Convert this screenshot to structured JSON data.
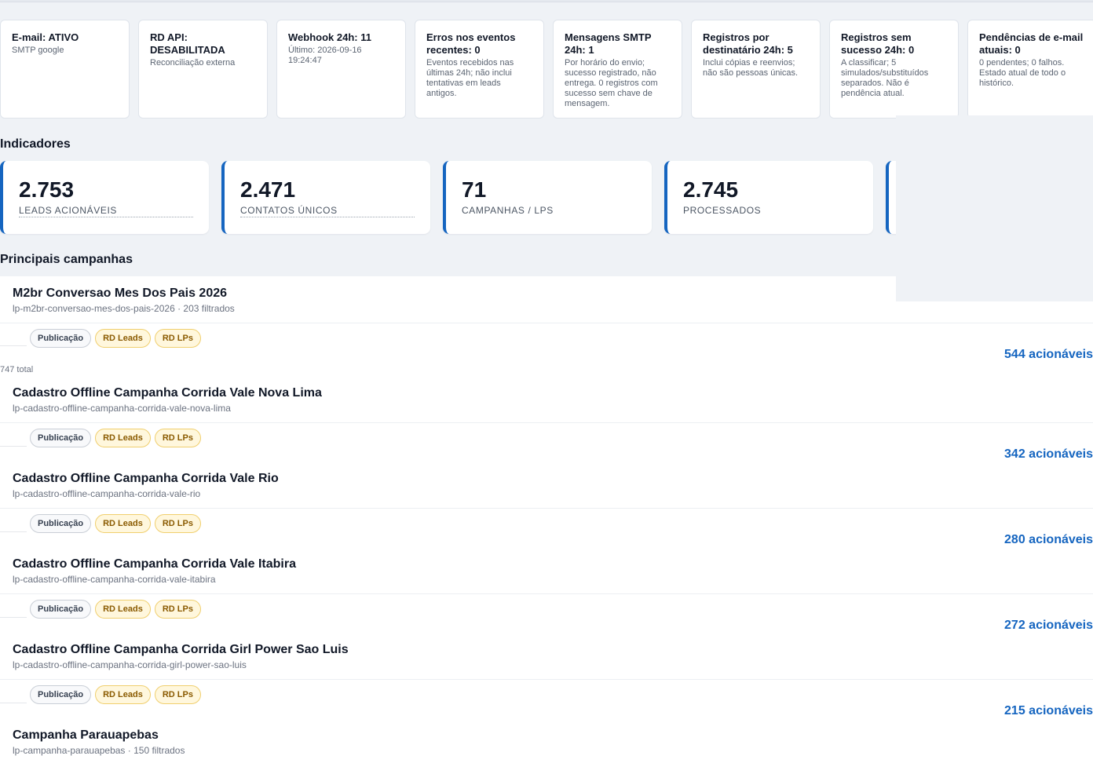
{
  "status_cards": [
    {
      "title": "E-mail: ATIVO",
      "desc": "SMTP google"
    },
    {
      "title": "RD API: DESABILITADA",
      "desc": "Reconciliação externa"
    },
    {
      "title": "Webhook 24h: 11",
      "desc": "Último: 2026-09-16 19:24:47"
    },
    {
      "title": "Erros nos eventos recentes: 0",
      "desc": "Eventos recebidos nas últimas 24h; não inclui tentativas em leads antigos."
    },
    {
      "title": "Mensagens SMTP 24h: 1",
      "desc": "Por horário do envio; sucesso registrado, não entrega. 0 registros com sucesso sem chave de mensagem."
    },
    {
      "title": "Registros por destinatário 24h: 5",
      "desc": "Inclui cópias e reenvios; não são pessoas únicas."
    },
    {
      "title": "Registros sem sucesso 24h: 0",
      "desc": "A classificar; 5 simulados/substituídos separados. Não é pendência atual."
    },
    {
      "title": "Pendências de e-mail atuais: 0",
      "desc": "0 pendentes; 0 falhos. Estado atual de todo o histórico."
    }
  ],
  "indicators": {
    "title": "Indicadores",
    "items": [
      {
        "value": "2.753",
        "label": "LEADS ACIONÁVEIS"
      },
      {
        "value": "2.471",
        "label": "CONTATOS ÚNICOS"
      },
      {
        "value": "71",
        "label": "CAMPANHAS / LPS"
      },
      {
        "value": "2.745",
        "label": "PROCESSADOS"
      }
    ]
  },
  "campaigns": {
    "title": "Principais campanhas",
    "chip_labels": {
      "pub": "Publicação",
      "leads": "RD Leads",
      "lps": "RD LPs"
    },
    "total_note": "747 total",
    "items": [
      {
        "name": "M2br Conversao Mes Dos Pais 2026",
        "slug": "lp-m2br-conversao-mes-dos-pais-2026 · 203 filtrados",
        "actionable": "544 acionáveis"
      },
      {
        "name": "Cadastro Offline Campanha Corrida Vale Nova Lima",
        "slug": "lp-cadastro-offline-campanha-corrida-vale-nova-lima",
        "actionable": "342 acionáveis"
      },
      {
        "name": "Cadastro Offline Campanha Corrida Vale Rio",
        "slug": "lp-cadastro-offline-campanha-corrida-vale-rio",
        "actionable": "280 acionáveis"
      },
      {
        "name": "Cadastro Offline Campanha Corrida Vale Itabira",
        "slug": "lp-cadastro-offline-campanha-corrida-vale-itabira",
        "actionable": "272 acionáveis"
      },
      {
        "name": "Cadastro Offline Campanha Corrida Girl Power Sao Luis",
        "slug": "lp-cadastro-offline-campanha-corrida-girl-power-sao-luis",
        "actionable": "215 acionáveis"
      },
      {
        "name": "Campanha Parauapebas",
        "slug": "lp-campanha-parauapebas · 150 filtrados",
        "actionable": ""
      }
    ]
  }
}
